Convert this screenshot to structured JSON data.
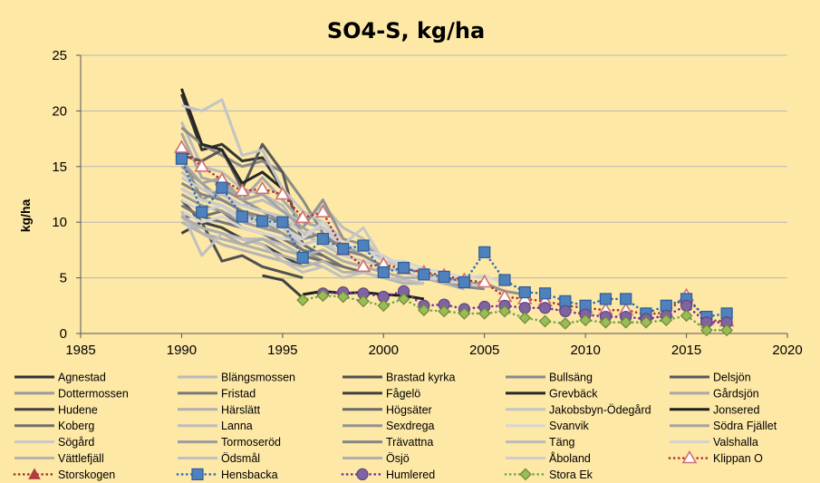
{
  "chart_data": {
    "type": "line",
    "title": "SO4-S, kg/ha",
    "xlabel": "",
    "ylabel": "kg/ha",
    "xlim": [
      1985,
      2020
    ],
    "ylim": [
      0,
      25
    ],
    "xticks": [
      1985,
      1990,
      1995,
      2000,
      2005,
      2010,
      2015,
      2020
    ],
    "yticks": [
      0,
      5,
      10,
      15,
      20,
      25
    ],
    "grid": "horizontal",
    "legend_position": "bottom",
    "series": [
      {
        "name": "Agnestad",
        "color": "#333333",
        "style": "solid",
        "x": [
          1990,
          1991,
          1992,
          1993,
          1994,
          1995
        ],
        "y": [
          21.5,
          16.5,
          17.0,
          15.5,
          15.8,
          13.0
        ]
      },
      {
        "name": "Blängsmossen",
        "color": "#bbbbbb",
        "style": "solid",
        "x": [
          1990,
          1991,
          1992,
          1993,
          1994,
          1995,
          1996,
          1997,
          1998
        ],
        "y": [
          19.0,
          15.0,
          14.5,
          13.0,
          12.5,
          11.5,
          9.0,
          8.0,
          7.0
        ]
      },
      {
        "name": "Brastad kyrka",
        "color": "#505050",
        "style": "solid",
        "x": [
          1990,
          1991,
          1992,
          1993,
          1994,
          1995,
          1996
        ],
        "y": [
          12.0,
          10.0,
          6.5,
          7.0,
          6.0,
          5.5,
          5.0
        ]
      },
      {
        "name": "Bullsäng",
        "color": "#8a8a8a",
        "style": "solid",
        "x": [
          1990,
          1991,
          1992,
          1993,
          1994,
          1995,
          1996,
          1997
        ],
        "y": [
          18.5,
          17.0,
          16.0,
          15.0,
          15.5,
          14.5,
          12.0,
          9.0
        ]
      },
      {
        "name": "Delsjön",
        "color": "#595959",
        "style": "solid",
        "x": [
          1990,
          1991,
          1992,
          1993,
          1994,
          1995,
          1996
        ],
        "y": [
          16.0,
          15.5,
          16.5,
          13.0,
          17.0,
          14.5,
          8.0
        ]
      },
      {
        "name": "Dottermossen",
        "color": "#9a9a9a",
        "style": "solid",
        "x": [
          1990,
          1991,
          1992,
          1993,
          1994,
          1995,
          1996,
          1997
        ],
        "y": [
          15.0,
          13.5,
          12.0,
          11.0,
          10.0,
          9.0,
          7.5,
          6.5
        ]
      },
      {
        "name": "Fristad",
        "color": "#777777",
        "style": "solid",
        "x": [
          1990,
          1991,
          1992,
          1993,
          1994,
          1995,
          1996,
          1997,
          1998
        ],
        "y": [
          11.5,
          10.5,
          10.0,
          9.5,
          9.0,
          8.5,
          7.5,
          7.0,
          6.0
        ]
      },
      {
        "name": "Fågelö",
        "color": "#3f3f3f",
        "style": "solid",
        "x": [
          1994,
          1995,
          1996
        ],
        "y": [
          5.2,
          4.8,
          3.2
        ]
      },
      {
        "name": "Grevbäck",
        "color": "#262626",
        "style": "solid",
        "x": [
          1990,
          1991,
          1992,
          1993,
          1994,
          1995
        ],
        "y": [
          22.0,
          17.0,
          16.5,
          13.5,
          14.5,
          13.0
        ]
      },
      {
        "name": "Gårdsjön",
        "color": "#a8a8a8",
        "style": "solid",
        "x": [
          1990,
          1991,
          1992,
          1993,
          1994,
          1995,
          1996,
          1997,
          1998
        ],
        "y": [
          18.0,
          14.0,
          13.5,
          12.0,
          14.0,
          12.0,
          10.0,
          9.5,
          8.0
        ]
      },
      {
        "name": "Hudene",
        "color": "#404040",
        "style": "solid",
        "x": [
          1990,
          1991,
          1992,
          1993,
          1994,
          1995,
          1996
        ],
        "y": [
          9.0,
          10.0,
          9.5,
          8.5,
          8.0,
          7.0,
          6.0
        ]
      },
      {
        "name": "Härslätt",
        "color": "#b0b0b0",
        "style": "solid",
        "x": [
          1990,
          1991,
          1992,
          1993,
          1994,
          1995,
          1996,
          1997
        ],
        "y": [
          10.5,
          9.0,
          8.5,
          8.0,
          7.5,
          7.0,
          6.5,
          6.0
        ]
      },
      {
        "name": "Högsäter",
        "color": "#6a6a6a",
        "style": "solid",
        "x": [
          1990,
          1991,
          1992,
          1993,
          1994,
          1995,
          1996,
          1997
        ],
        "y": [
          13.0,
          12.0,
          11.5,
          10.5,
          10.0,
          9.5,
          8.0,
          7.0
        ]
      },
      {
        "name": "Jakobsbyn-Ödegård",
        "color": "#c4c4c4",
        "style": "solid",
        "x": [
          1990,
          1991,
          1992,
          1993,
          1994,
          1995,
          1996,
          1997,
          1998
        ],
        "y": [
          20.5,
          20.0,
          21.0,
          16.0,
          16.5,
          13.0,
          11.0,
          10.0,
          8.5
        ]
      },
      {
        "name": "Jonsered",
        "color": "#1f1f1f",
        "style": "solid",
        "x": [
          1996,
          1997,
          1998,
          1999,
          2000,
          2001,
          2002
        ],
        "y": [
          3.5,
          3.8,
          3.6,
          3.7,
          3.5,
          3.4,
          3.1
        ]
      },
      {
        "name": "Koberg",
        "color": "#707070",
        "style": "solid",
        "x": [
          1990,
          1991,
          1992,
          1993,
          1994,
          1995,
          1996,
          1997,
          1998,
          1999,
          2000
        ],
        "y": [
          10.5,
          10.5,
          11.0,
          9.5,
          9.0,
          8.0,
          7.0,
          6.5,
          6.0,
          5.5,
          5.0
        ]
      },
      {
        "name": "Lanna",
        "color": "#bdbdbd",
        "style": "solid",
        "x": [
          1990,
          1991,
          1992,
          1993,
          1994,
          1995,
          1996,
          1997,
          1998,
          1999,
          2000,
          2001,
          2002,
          2003
        ],
        "y": [
          14.5,
          13.0,
          12.5,
          11.5,
          12.0,
          11.0,
          10.0,
          11.5,
          9.5,
          8.5,
          6.5,
          6.0,
          5.5,
          5.0
        ]
      },
      {
        "name": "Sexdrega",
        "color": "#929292",
        "style": "solid",
        "x": [
          1990,
          1991,
          1992,
          1993,
          1994,
          1995,
          1996,
          1997,
          1998,
          1999,
          2000,
          2001,
          2002,
          2003,
          2004,
          2005,
          2006,
          2007
        ],
        "y": [
          16.0,
          12.0,
          13.0,
          12.0,
          11.0,
          10.0,
          9.5,
          12.0,
          8.5,
          8.0,
          6.5,
          6.0,
          5.5,
          5.0,
          4.5,
          4.5,
          3.8,
          3.5
        ]
      },
      {
        "name": "Svanvik",
        "color": "#d6d6d6",
        "style": "solid",
        "x": [
          1990,
          1991,
          1992,
          1993,
          1994,
          1995,
          1996,
          1997,
          1998,
          1999,
          2000,
          2001,
          2002,
          2003,
          2004,
          2005,
          2006
        ],
        "y": [
          11.0,
          10.0,
          10.5,
          9.5,
          9.0,
          8.5,
          8.5,
          9.0,
          8.0,
          7.5,
          6.5,
          6.5,
          5.8,
          5.5,
          5.0,
          5.2,
          4.5
        ]
      },
      {
        "name": "Södra Fjället",
        "color": "#a4a4a4",
        "style": "solid",
        "x": [
          1990,
          1991,
          1992,
          1993,
          1994,
          1995,
          1996,
          1997,
          1998,
          1999,
          2000
        ],
        "y": [
          15.5,
          13.5,
          14.0,
          12.0,
          12.5,
          11.0,
          9.5,
          8.5,
          8.0,
          7.0,
          6.0
        ]
      },
      {
        "name": "Sögård",
        "color": "#c8c8c8",
        "style": "solid",
        "x": [
          1990,
          1991,
          1992,
          1993,
          1994,
          1995,
          1996,
          1997,
          1998,
          1999,
          2000,
          2001,
          2002
        ],
        "y": [
          14.0,
          13.0,
          12.0,
          11.5,
          11.0,
          10.5,
          9.0,
          9.5,
          8.0,
          9.5,
          6.5,
          6.0,
          5.5
        ]
      },
      {
        "name": "Tormoseröd",
        "color": "#9c9c9c",
        "style": "solid",
        "x": [
          1990,
          1991,
          1992,
          1993,
          1994,
          1995,
          1996,
          1997,
          1998,
          1999,
          2000,
          2001
        ],
        "y": [
          12.5,
          11.5,
          11.0,
          10.0,
          9.5,
          9.0,
          8.0,
          8.5,
          7.0,
          6.5,
          6.0,
          5.5
        ]
      },
      {
        "name": "Trävattna",
        "color": "#858585",
        "style": "solid",
        "x": [
          1990,
          1991,
          1992,
          1993,
          1994,
          1995,
          1996,
          1997,
          1998,
          1999,
          2000,
          2001,
          2002,
          2003,
          2004,
          2005
        ],
        "y": [
          13.5,
          12.5,
          12.0,
          11.0,
          10.5,
          10.0,
          8.5,
          9.0,
          7.5,
          7.0,
          6.0,
          5.5,
          5.0,
          4.5,
          4.2,
          4.0
        ]
      },
      {
        "name": "Täng",
        "color": "#bababa",
        "style": "solid",
        "x": [
          1990,
          1991,
          1992,
          1993,
          1994,
          1995,
          1996,
          1997,
          1998,
          1999,
          2000
        ],
        "y": [
          10.0,
          9.5,
          9.0,
          8.5,
          8.5,
          8.0,
          7.0,
          7.5,
          6.5,
          6.0,
          5.5
        ]
      },
      {
        "name": "Valshalla",
        "color": "#d2d2d2",
        "style": "solid",
        "x": [
          1990,
          1991,
          1992,
          1993,
          1994,
          1995,
          1996,
          1997,
          1998,
          1999,
          2000,
          2001,
          2002,
          2003
        ],
        "y": [
          12.0,
          11.0,
          11.5,
          10.0,
          10.5,
          9.5,
          8.5,
          10.0,
          8.0,
          7.5,
          7.0,
          6.0,
          5.5,
          5.0
        ]
      },
      {
        "name": "Vättlefjäll",
        "color": "#b4b4b4",
        "style": "solid",
        "x": [
          1990,
          1991,
          1992,
          1993,
          1994,
          1995,
          1996,
          1997,
          1998,
          1999,
          2000,
          2001,
          2002
        ],
        "y": [
          10.0,
          9.0,
          8.0,
          7.5,
          7.0,
          6.5,
          6.0,
          6.5,
          5.5,
          5.5,
          5.0,
          4.5,
          4.5
        ]
      },
      {
        "name": "Ödsmål",
        "color": "#c0c0c0",
        "style": "solid",
        "x": [
          1990,
          1991,
          1992,
          1993,
          1994,
          1995,
          1996,
          1997,
          1998,
          1999,
          2000,
          2001,
          2002
        ],
        "y": [
          11.0,
          7.0,
          9.0,
          8.5,
          8.0,
          6.5,
          5.5,
          6.0,
          5.0,
          5.5,
          5.0,
          4.8,
          4.5
        ]
      },
      {
        "name": "Ösjö",
        "color": "#aeaeae",
        "style": "solid",
        "x": [
          1990,
          1991,
          1992,
          1993,
          1994,
          1995,
          1996,
          1997,
          1998,
          1999,
          2000,
          2001,
          2002,
          2003,
          2004
        ],
        "y": [
          10.5,
          9.5,
          9.0,
          8.0,
          8.5,
          7.5,
          7.0,
          7.5,
          6.5,
          6.0,
          5.5,
          5.0,
          5.0,
          4.5,
          4.0
        ]
      },
      {
        "name": "Åboland",
        "color": "#cdcdcd",
        "style": "solid",
        "x": [
          1990,
          1991,
          1992,
          1993,
          1994,
          1995,
          1996,
          1997,
          1998,
          1999,
          2000,
          2001,
          2002,
          2003,
          2004,
          2005
        ],
        "y": [
          13.0,
          12.0,
          11.5,
          10.5,
          10.0,
          9.5,
          8.0,
          8.5,
          7.0,
          6.5,
          6.0,
          5.5,
          5.0,
          4.8,
          4.5,
          4.2
        ]
      },
      {
        "name": "Klippan O",
        "color": "#b03030",
        "style": "dotted",
        "marker": "triangle-open",
        "markerColor": "#d07070",
        "x": [
          1990,
          1991,
          1992,
          1993,
          1994,
          1995,
          1996,
          1997,
          1998,
          1999,
          2000,
          2001,
          2002,
          2003,
          2004,
          2005,
          2006,
          2007,
          2008,
          2009,
          2010,
          2011,
          2012,
          2013,
          2014,
          2015,
          2016,
          2017
        ],
        "y": [
          16.7,
          15.0,
          13.8,
          12.8,
          13.0,
          12.5,
          10.4,
          10.9,
          7.5,
          6.0,
          6.2,
          5.8,
          5.5,
          5.2,
          4.8,
          4.6,
          3.3,
          3.1,
          2.9,
          2.5,
          2.3,
          2.1,
          2.1,
          1.7,
          1.9,
          3.4,
          1.2,
          1.1
        ]
      },
      {
        "name": "Storskogen",
        "color": "#a03030",
        "style": "dotted",
        "marker": "triangle",
        "markerColor": "#b04040",
        "x": [],
        "y": []
      },
      {
        "name": "Hensbacka",
        "color": "#2e6db4",
        "style": "dotted",
        "marker": "square",
        "markerColor": "#4f81bd",
        "x": [
          1990,
          1991,
          1992,
          1993,
          1994,
          1995,
          1996,
          1997,
          1998,
          1999,
          2000,
          2001,
          2002,
          2003,
          2004,
          2005,
          2006,
          2007,
          2008,
          2009,
          2010,
          2011,
          2012,
          2013,
          2014,
          2015,
          2016,
          2017
        ],
        "y": [
          15.7,
          10.9,
          13.1,
          10.5,
          10.1,
          10.0,
          6.8,
          8.5,
          7.6,
          7.9,
          5.5,
          5.9,
          5.3,
          5.1,
          4.6,
          7.3,
          4.8,
          3.7,
          3.6,
          2.9,
          2.5,
          3.1,
          3.1,
          1.8,
          2.5,
          3.1,
          1.5,
          1.8
        ]
      },
      {
        "name": "Humlered",
        "color": "#7030a0",
        "style": "dotted",
        "marker": "circle",
        "markerColor": "#8064a2",
        "x": [
          1997,
          1998,
          1999,
          2000,
          2001,
          2002,
          2003,
          2004,
          2005,
          2006,
          2007,
          2008,
          2009,
          2010,
          2011,
          2012,
          2013,
          2014,
          2015,
          2016,
          2017
        ],
        "y": [
          3.6,
          3.7,
          3.6,
          3.3,
          3.8,
          2.5,
          2.6,
          2.2,
          2.4,
          2.5,
          2.3,
          2.3,
          2.0,
          1.7,
          1.5,
          1.5,
          1.3,
          1.6,
          2.5,
          1.0,
          1.0
        ]
      },
      {
        "name": "Stora Ek",
        "color": "#6aa84f",
        "style": "dotted",
        "marker": "diamond",
        "markerColor": "#9bbb59",
        "x": [
          1996,
          1997,
          1998,
          1999,
          2000,
          2001,
          2002,
          2003,
          2004,
          2005,
          2006,
          2007,
          2008,
          2009,
          2010,
          2011,
          2012,
          2013,
          2014,
          2015,
          2016,
          2017
        ],
        "y": [
          3.0,
          3.4,
          3.3,
          2.9,
          2.5,
          3.1,
          2.1,
          2.0,
          1.8,
          1.8,
          2.0,
          1.4,
          1.1,
          0.9,
          1.2,
          1.0,
          1.0,
          1.0,
          1.2,
          1.6,
          0.3,
          0.3
        ]
      }
    ]
  }
}
